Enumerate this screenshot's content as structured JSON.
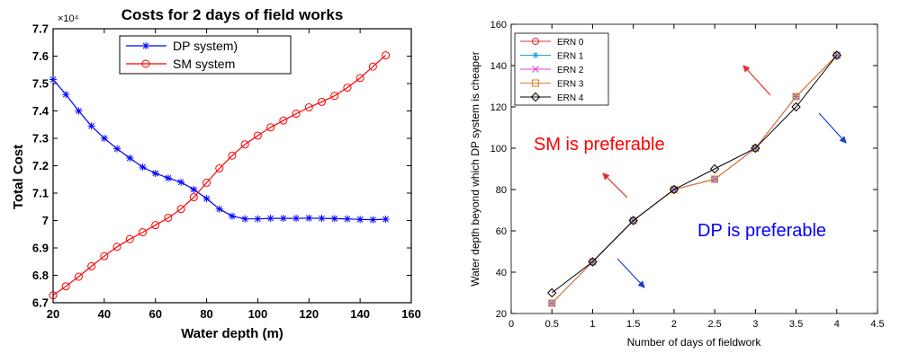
{
  "chart_data": [
    {
      "type": "line",
      "title": "Costs for 2 days of field works",
      "xlabel": "Water depth (m)",
      "ylabel": "Total Cost",
      "exponent_label": "×10⁴",
      "xlim": [
        20,
        160
      ],
      "ylim": [
        6.7,
        7.7
      ],
      "xticks": [
        20,
        40,
        60,
        80,
        100,
        120,
        140,
        160
      ],
      "xtick_labels": [
        "20",
        "40",
        "60",
        "80",
        "100",
        "120",
        "140",
        "160"
      ],
      "yticks": [
        6.7,
        6.8,
        6.9,
        7.0,
        7.1,
        7.2,
        7.3,
        7.4,
        7.5,
        7.6,
        7.7
      ],
      "ytick_labels": [
        "6.7",
        "6.8",
        "6.9",
        "7",
        "7.1",
        "7.2",
        "7.3",
        "7.4",
        "7.5",
        "7.6",
        "7.7"
      ],
      "grid": false,
      "legend_position": "top-center",
      "x": [
        20,
        25,
        30,
        35,
        40,
        45,
        50,
        55,
        60,
        65,
        70,
        75,
        80,
        85,
        90,
        95,
        100,
        105,
        110,
        115,
        120,
        125,
        130,
        135,
        140,
        145,
        150
      ],
      "series": [
        {
          "name": "DP system)",
          "color": "#0000ff",
          "marker": "asterisk",
          "values": [
            7.515,
            7.46,
            7.4,
            7.345,
            7.3,
            7.262,
            7.228,
            7.195,
            7.172,
            7.155,
            7.14,
            7.113,
            7.08,
            7.042,
            7.016,
            7.006,
            7.006,
            7.008,
            7.008,
            7.008,
            7.009,
            7.008,
            7.007,
            7.006,
            7.004,
            7.003,
            7.005
          ]
        },
        {
          "name": "SM system",
          "color": "#ff0000",
          "marker": "circle",
          "values": [
            6.727,
            6.76,
            6.795,
            6.833,
            6.87,
            6.904,
            6.932,
            6.957,
            6.983,
            7.01,
            7.042,
            7.085,
            7.138,
            7.19,
            7.237,
            7.278,
            7.31,
            7.34,
            7.365,
            7.39,
            7.413,
            7.433,
            7.455,
            7.485,
            7.52,
            7.562,
            7.603
          ]
        }
      ]
    },
    {
      "type": "line",
      "title": "",
      "xlabel": "Number of days of fieldwork",
      "ylabel": "Water depth beyond which DP system is cheaper",
      "xlim": [
        0,
        4.5
      ],
      "ylim": [
        20,
        160
      ],
      "xticks": [
        0,
        0.5,
        1,
        1.5,
        2,
        2.5,
        3,
        3.5,
        4,
        4.5
      ],
      "xtick_labels": [
        "0",
        "0.5",
        "1",
        "1.5",
        "2",
        "2.5",
        "3",
        "3.5",
        "4",
        "4.5"
      ],
      "yticks": [
        20,
        40,
        60,
        80,
        100,
        120,
        140,
        160
      ],
      "ytick_labels": [
        "20",
        "40",
        "60",
        "80",
        "100",
        "120",
        "140",
        "160"
      ],
      "grid": false,
      "legend_position": "top-left",
      "x": [
        0.5,
        1,
        1.5,
        2,
        2.5,
        3,
        3.5,
        4
      ],
      "series": [
        {
          "name": "ERN 0",
          "color": "#d93030",
          "marker": "circle",
          "values": [
            25,
            45,
            65,
            80,
            85,
            100,
            125,
            145
          ]
        },
        {
          "name": "ERN 1",
          "color": "#1f9fd8",
          "marker": "asterisk",
          "values": [
            25,
            45,
            65,
            80,
            85,
            100,
            125,
            145
          ]
        },
        {
          "name": "ERN 2",
          "color": "#e040e0",
          "marker": "x",
          "values": [
            25,
            45,
            65,
            80,
            85,
            100,
            125,
            145
          ]
        },
        {
          "name": "ERN 3",
          "color": "#d9822b",
          "marker": "square",
          "values": [
            25,
            45,
            65,
            80,
            85,
            100,
            125,
            145
          ]
        },
        {
          "name": "ERN 4",
          "color": "#000000",
          "marker": "diamond",
          "values": [
            30,
            45,
            65,
            80,
            90,
            100,
            120,
            145
          ]
        }
      ],
      "annotations": [
        {
          "text": "SM is preferable",
          "color": "#ff0000"
        },
        {
          "text": "DP is preferable",
          "color": "#0000ff"
        }
      ]
    }
  ]
}
